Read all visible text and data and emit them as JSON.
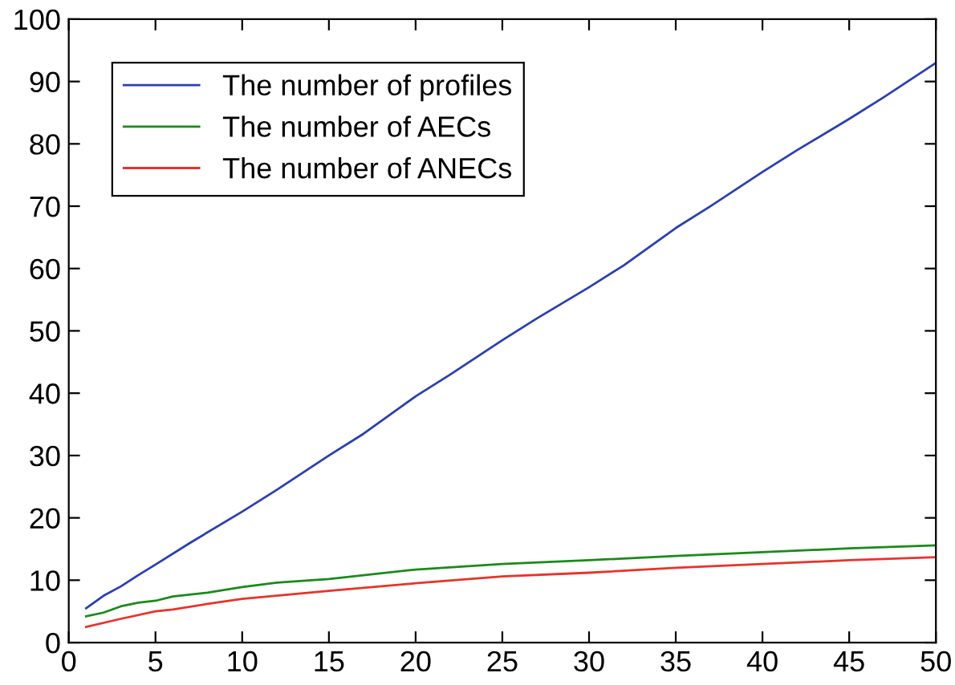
{
  "chart_data": {
    "type": "line",
    "xlim": [
      0,
      50
    ],
    "ylim": [
      0,
      100
    ],
    "xticks": [
      0,
      5,
      10,
      15,
      20,
      25,
      30,
      35,
      40,
      45,
      50
    ],
    "yticks": [
      0,
      10,
      20,
      30,
      40,
      50,
      60,
      70,
      80,
      90,
      100
    ],
    "grid": false,
    "legend": "top left",
    "marker": "none",
    "line_style": "solid",
    "series": [
      {
        "name": "The number of profiles",
        "color": "#2b3fb0",
        "x": [
          1,
          2,
          3,
          4,
          5,
          7,
          10,
          12,
          15,
          17,
          20,
          22,
          25,
          27,
          30,
          32,
          35,
          37,
          40,
          42,
          45,
          47,
          50
        ],
        "values": [
          5.5,
          7.5,
          9,
          10.8,
          12.5,
          16,
          21,
          24.5,
          30,
          33.5,
          39.5,
          43,
          48.5,
          52,
          57,
          60.5,
          66.5,
          70,
          75.5,
          79,
          84,
          87.5,
          93
        ]
      },
      {
        "name": "The number of AECs",
        "color": "#1a8a1a",
        "x": [
          1,
          2,
          3,
          4,
          5,
          6,
          8,
          10,
          12,
          15,
          20,
          25,
          30,
          35,
          40,
          45,
          50
        ],
        "values": [
          4.2,
          4.8,
          5.8,
          6.4,
          6.7,
          7.4,
          8.0,
          8.9,
          9.6,
          10.2,
          11.7,
          12.6,
          13.2,
          13.9,
          14.5,
          15.1,
          15.6
        ]
      },
      {
        "name": "The number of ANECs",
        "color": "#e8332a",
        "x": [
          1,
          3,
          5,
          6,
          8,
          10,
          15,
          20,
          25,
          30,
          35,
          40,
          45,
          50
        ],
        "values": [
          2.5,
          3.8,
          5,
          5.3,
          6.2,
          7,
          8.3,
          9.5,
          10.6,
          11.2,
          12,
          12.6,
          13.2,
          13.7
        ]
      }
    ]
  }
}
